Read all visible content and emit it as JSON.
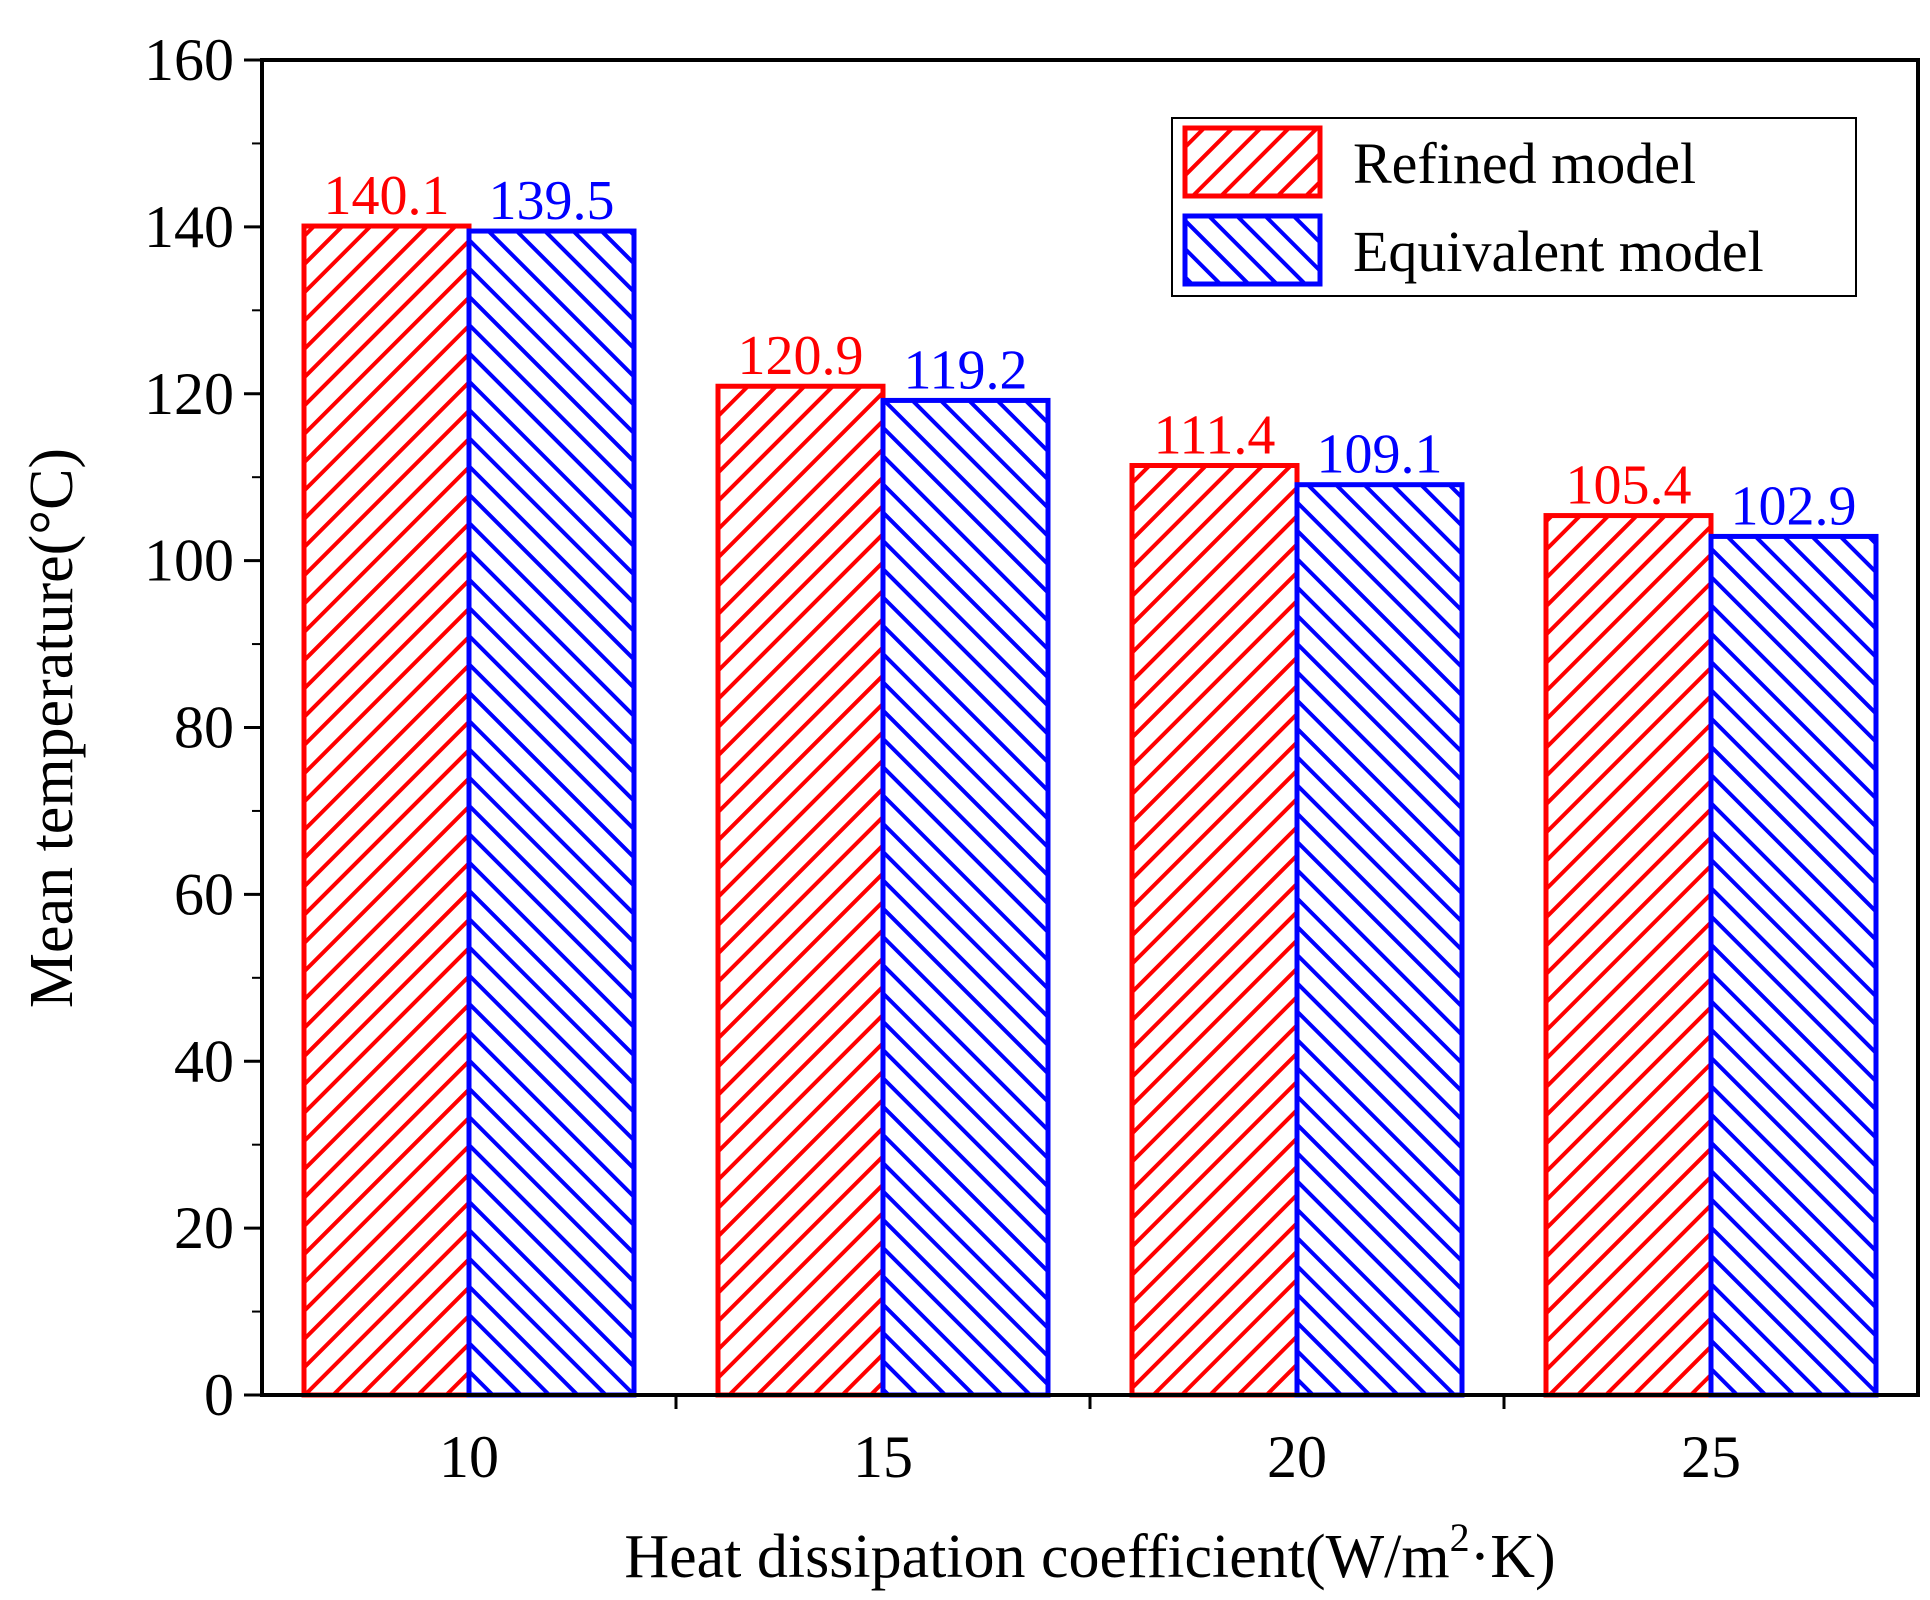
{
  "chart_data": {
    "type": "bar",
    "categories": [
      "10",
      "15",
      "20",
      "25"
    ],
    "series": [
      {
        "name": "Refined model",
        "color": "#ff0000",
        "values": [
          140.1,
          120.9,
          111.4,
          105.4
        ],
        "labels": [
          "140.1",
          "120.9",
          "111.4",
          "105.4"
        ]
      },
      {
        "name": "Equivalent model",
        "color": "#0000ff",
        "values": [
          139.5,
          119.2,
          109.1,
          102.9
        ],
        "labels": [
          "139.5",
          "119.2",
          "109.1",
          "102.9"
        ]
      }
    ],
    "ylim": [
      0,
      160
    ],
    "yticks": [
      "0",
      "20",
      "40",
      "60",
      "80",
      "100",
      "120",
      "140",
      "160"
    ],
    "ylabel": "Mean temperature(°C)",
    "xlabel": {
      "main": "Heat dissipation coefficient(W/m",
      "sup": "2",
      "tail": "·K)"
    },
    "legend_position": "top-right",
    "grid": false
  }
}
